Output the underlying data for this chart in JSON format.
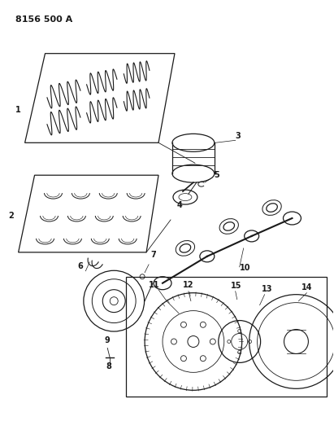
{
  "title": "8156 500 A",
  "bg_color": "#ffffff",
  "line_color": "#1a1a1a",
  "fig_width": 4.11,
  "fig_height": 5.33,
  "dpi": 100
}
